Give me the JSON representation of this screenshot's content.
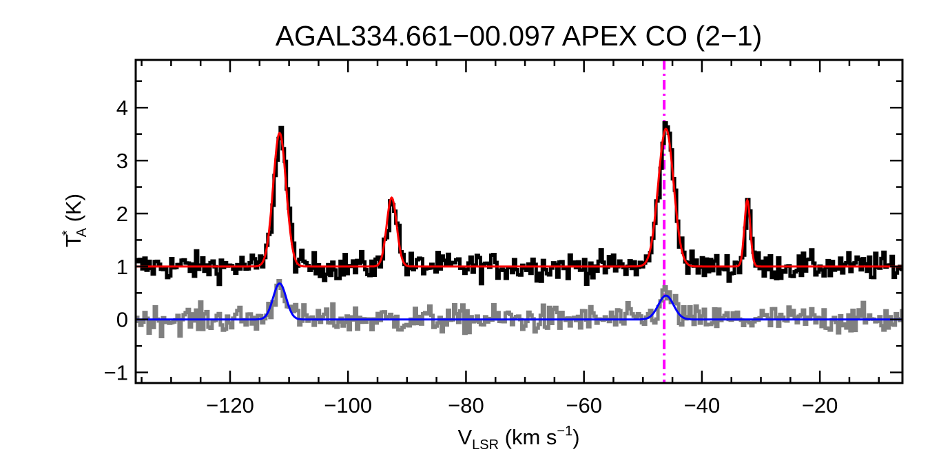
{
  "chart_data": {
    "type": "line",
    "title": "AGAL334.661−00.097  APEX CO (2−1)",
    "xlabel": {
      "main": "V",
      "sub": "LSR",
      "rest": " (km s",
      "sup": "−1",
      "end": ")"
    },
    "ylabel": {
      "main": "T",
      "sup": "*",
      "sub": "A",
      "rest": " (K)"
    },
    "xlim": [
      -136,
      -6
    ],
    "ylim": [
      -1.2,
      4.9
    ],
    "x_ticks": [
      -120,
      -100,
      -80,
      -60,
      -40,
      -20
    ],
    "x_tick_labels": [
      "−120",
      "−100",
      "−80",
      "−60",
      "−40",
      "−20"
    ],
    "y_ticks": [
      -1,
      0,
      1,
      2,
      3,
      4
    ],
    "y_tick_labels": [
      "−1",
      "0",
      "1",
      "2",
      "3",
      "4"
    ],
    "reference_velocity": -46.4,
    "components": [
      {
        "velocity": -111.6,
        "sigma": 1.1,
        "amplitude_obs": 2.52,
        "amplitude_ref": 0.68
      },
      {
        "velocity": -92.6,
        "sigma": 0.85,
        "amplitude_obs": 1.3,
        "amplitude_ref": 0.0
      },
      {
        "velocity": -46.1,
        "sigma": 1.3,
        "amplitude_obs": 2.6,
        "amplitude_ref": 0.45
      },
      {
        "velocity": -32.3,
        "sigma": 0.5,
        "amplitude_obs": 1.25,
        "amplitude_ref": 0.0
      }
    ],
    "series": [
      {
        "role": "spectrum",
        "baseline": 1.0,
        "noise": 0.13,
        "color": "#000000"
      },
      {
        "role": "fit",
        "baseline": 1.0,
        "color": "#ff0000"
      },
      {
        "role": "spectrum",
        "baseline": 0.0,
        "noise": 0.13,
        "color": "#808080"
      },
      {
        "role": "fit",
        "baseline": 0.0,
        "color": "#0000ff"
      }
    ],
    "reference_line_color": "#ff00ff"
  }
}
